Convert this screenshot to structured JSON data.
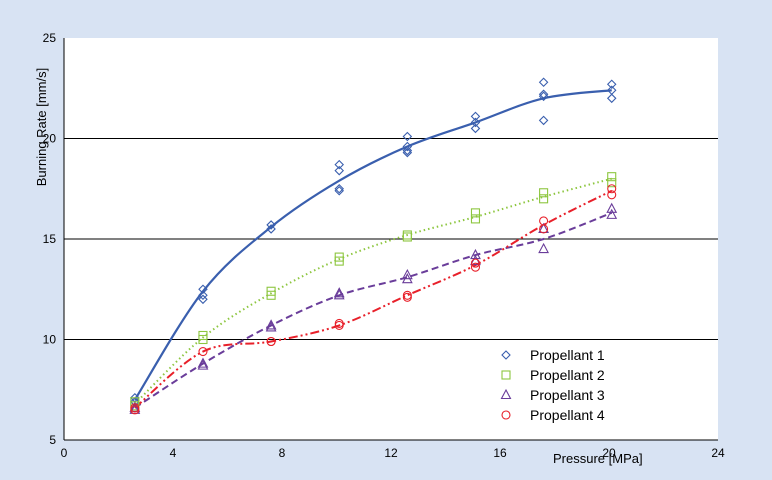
{
  "chart_data": {
    "type": "scatter",
    "xlabel": "Pressure [MPa]",
    "ylabel": "Burning Rate [mm/s]",
    "xlim": [
      0,
      24
    ],
    "ylim": [
      5,
      25
    ],
    "x_ticks": [
      "0",
      "4",
      "8",
      "12",
      "16",
      "20",
      "24"
    ],
    "y_ticks": [
      "5",
      "10",
      "15",
      "20",
      "25"
    ],
    "y_gridlines": [
      10,
      15,
      20
    ],
    "legend_position": "bottom-right",
    "series": [
      {
        "name": "Propellant 1",
        "marker": "diamond",
        "color": "#3a5fae",
        "line_style": "solid",
        "points": [
          [
            2.6,
            7.1
          ],
          [
            2.6,
            6.9
          ],
          [
            5.1,
            12.5
          ],
          [
            5.1,
            12.2
          ],
          [
            5.1,
            12.0
          ],
          [
            7.6,
            15.7
          ],
          [
            7.6,
            15.5
          ],
          [
            10.1,
            18.7
          ],
          [
            10.1,
            18.4
          ],
          [
            10.1,
            17.5
          ],
          [
            10.1,
            17.4
          ],
          [
            12.6,
            20.1
          ],
          [
            12.6,
            19.6
          ],
          [
            12.6,
            19.4
          ],
          [
            12.6,
            19.3
          ],
          [
            15.1,
            21.1
          ],
          [
            15.1,
            20.8
          ],
          [
            15.1,
            20.5
          ],
          [
            17.6,
            22.8
          ],
          [
            17.6,
            22.2
          ],
          [
            17.6,
            22.1
          ],
          [
            17.6,
            20.9
          ],
          [
            20.1,
            22.7
          ],
          [
            20.1,
            22.4
          ],
          [
            20.1,
            22.0
          ]
        ],
        "curve": [
          [
            2.6,
            7.0
          ],
          [
            5.1,
            12.4
          ],
          [
            7.6,
            15.6
          ],
          [
            10.1,
            17.9
          ],
          [
            12.6,
            19.6
          ],
          [
            15.1,
            20.8
          ],
          [
            17.6,
            22.0
          ],
          [
            20.1,
            22.4
          ]
        ]
      },
      {
        "name": "Propellant 2",
        "marker": "square",
        "color": "#8dc63f",
        "line_style": "dotted",
        "points": [
          [
            2.6,
            6.9
          ],
          [
            2.6,
            6.7
          ],
          [
            5.1,
            10.2
          ],
          [
            5.1,
            10.0
          ],
          [
            7.6,
            12.4
          ],
          [
            7.6,
            12.2
          ],
          [
            10.1,
            14.1
          ],
          [
            10.1,
            13.9
          ],
          [
            12.6,
            15.2
          ],
          [
            12.6,
            15.1
          ],
          [
            15.1,
            16.3
          ],
          [
            15.1,
            16.0
          ],
          [
            17.6,
            17.3
          ],
          [
            17.6,
            17.0
          ],
          [
            20.1,
            18.1
          ],
          [
            20.1,
            17.8
          ]
        ],
        "curve": [
          [
            2.6,
            6.8
          ],
          [
            5.1,
            10.1
          ],
          [
            7.6,
            12.3
          ],
          [
            10.1,
            14.0
          ],
          [
            12.6,
            15.2
          ],
          [
            15.1,
            16.1
          ],
          [
            17.6,
            17.1
          ],
          [
            20.1,
            18.0
          ]
        ]
      },
      {
        "name": "Propellant 3",
        "marker": "triangle",
        "color": "#6a3d9a",
        "line_style": "dashed",
        "points": [
          [
            2.6,
            6.6
          ],
          [
            2.6,
            6.5
          ],
          [
            5.1,
            8.8
          ],
          [
            5.1,
            8.7
          ],
          [
            7.6,
            10.7
          ],
          [
            7.6,
            10.6
          ],
          [
            10.1,
            12.3
          ],
          [
            10.1,
            12.2
          ],
          [
            12.6,
            13.2
          ],
          [
            12.6,
            13.0
          ],
          [
            15.1,
            14.2
          ],
          [
            15.1,
            13.9
          ],
          [
            17.6,
            15.5
          ],
          [
            17.6,
            14.5
          ],
          [
            20.1,
            16.5
          ],
          [
            20.1,
            16.2
          ]
        ],
        "curve": [
          [
            2.6,
            6.6
          ],
          [
            5.1,
            8.8
          ],
          [
            7.6,
            10.7
          ],
          [
            10.1,
            12.2
          ],
          [
            12.6,
            13.1
          ],
          [
            15.1,
            14.2
          ],
          [
            17.6,
            15.0
          ],
          [
            20.1,
            16.3
          ]
        ]
      },
      {
        "name": "Propellant 4",
        "marker": "circle",
        "color": "#e8202a",
        "line_style": "dash-dot-dot",
        "points": [
          [
            2.6,
            6.6
          ],
          [
            2.6,
            6.5
          ],
          [
            5.1,
            9.4
          ],
          [
            7.6,
            9.9
          ],
          [
            7.6,
            9.9
          ],
          [
            10.1,
            10.8
          ],
          [
            10.1,
            10.7
          ],
          [
            12.6,
            12.2
          ],
          [
            12.6,
            12.1
          ],
          [
            15.1,
            13.8
          ],
          [
            15.1,
            13.6
          ],
          [
            17.6,
            15.9
          ],
          [
            17.6,
            15.5
          ],
          [
            20.1,
            17.5
          ],
          [
            20.1,
            17.2
          ]
        ],
        "curve": [
          [
            2.6,
            6.6
          ],
          [
            5.1,
            9.4
          ],
          [
            7.6,
            9.9
          ],
          [
            10.1,
            10.7
          ],
          [
            12.6,
            12.2
          ],
          [
            15.1,
            13.7
          ],
          [
            17.6,
            15.7
          ],
          [
            20.1,
            17.4
          ]
        ]
      }
    ]
  }
}
